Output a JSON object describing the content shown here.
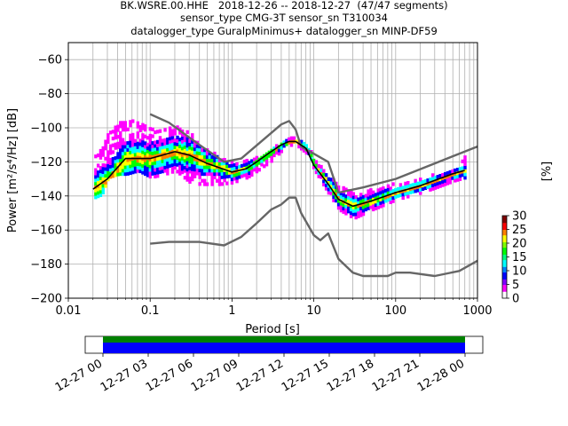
{
  "title_lines": [
    "BK.WSRE.00.HHE   2018-12-26 -- 2018-12-27  (47/47 segments)",
    "sensor_type CMG-3T sensor_sn T310034",
    "datalogger_type GuralpMinimus+ datalogger_sn MINP-DF59"
  ],
  "chart_data": {
    "type": "heatmap",
    "xlabel": "Period [s]",
    "ylabel": "Power [m²/s⁴/Hz] [dB]",
    "x_scale": "log",
    "xlim": [
      0.01,
      1000
    ],
    "ylim": [
      -200,
      -50
    ],
    "x_ticks": [
      0.01,
      0.1,
      1,
      10,
      100,
      1000
    ],
    "x_tick_labels": [
      "0.01",
      "0.1",
      "1",
      "10",
      "100",
      "1000"
    ],
    "y_ticks": [
      -200,
      -180,
      -160,
      -140,
      -120,
      -100,
      -80,
      -60
    ],
    "y_tick_labels": [
      "−200",
      "−180",
      "−160",
      "−140",
      "−120",
      "−100",
      "−80",
      "−60"
    ],
    "grid": true,
    "colorbar": {
      "label": "[%]",
      "range": [
        0,
        30
      ],
      "ticks": [
        0,
        5,
        10,
        15,
        20,
        25,
        30
      ],
      "colors": [
        "#ffffff",
        "#ff00ff",
        "#0000ff",
        "#00ffff",
        "#00ff00",
        "#ffff00",
        "#ff8000",
        "#ff0000",
        "#800000"
      ]
    },
    "mean_curve": {
      "x": [
        0.02,
        0.03,
        0.05,
        0.1,
        0.2,
        0.3,
        0.5,
        1,
        1.5,
        2,
        3,
        4,
        5,
        6,
        8,
        10,
        15,
        20,
        30,
        50,
        100,
        200,
        500,
        700
      ],
      "y": [
        -136,
        -130,
        -118,
        -118,
        -114,
        -116,
        -121,
        -126,
        -124,
        -120,
        -114,
        -110,
        -108,
        -108,
        -112,
        -122,
        -133,
        -142,
        -146,
        -143,
        -138,
        -134,
        -127,
        -125
      ]
    },
    "nhnm": {
      "x": [
        0.1,
        0.17,
        0.4,
        0.8,
        1.3,
        4,
        5,
        6,
        7,
        15,
        20,
        40,
        100,
        1000
      ],
      "y": [
        -92,
        -97,
        -110,
        -120,
        -118,
        -98,
        -96,
        -101,
        -111,
        -120,
        -138,
        -135,
        -130,
        -111
      ]
    },
    "nlnm": {
      "x": [
        0.1,
        0.17,
        0.4,
        0.8,
        1.3,
        2,
        3,
        4,
        5,
        6,
        7,
        10,
        12,
        15,
        20,
        30,
        40,
        80,
        100,
        150,
        300,
        600,
        1000
      ],
      "y": [
        -168,
        -167,
        -167,
        -169,
        -164,
        -156,
        -148,
        -145,
        -141,
        -141,
        -150,
        -163,
        -166,
        -162,
        -177,
        -185,
        -187,
        -187,
        -185,
        -185,
        -187,
        -184,
        -178
      ]
    },
    "psd_band": {
      "x": [
        0.02,
        0.025,
        0.03,
        0.04,
        0.05,
        0.07,
        0.1,
        0.15,
        0.2,
        0.3,
        0.4,
        0.5,
        0.7,
        1,
        1.5,
        2,
        3,
        4,
        5,
        6,
        8,
        10,
        15,
        20,
        30,
        50,
        100,
        200,
        300,
        500,
        700
      ],
      "upper": [
        -118,
        -112,
        -104,
        -98,
        -96,
        -97,
        -101,
        -101,
        -100,
        -104,
        -110,
        -114,
        -118,
        -120,
        -120,
        -118,
        -113,
        -109,
        -106,
        -106,
        -110,
        -119,
        -128,
        -135,
        -139,
        -137,
        -133,
        -129,
        -128,
        -124,
        -117
      ],
      "lower": [
        -142,
        -140,
        -130,
        -128,
        -128,
        -126,
        -130,
        -128,
        -126,
        -133,
        -134,
        -134,
        -134,
        -133,
        -130,
        -126,
        -120,
        -114,
        -111,
        -111,
        -116,
        -126,
        -140,
        -149,
        -154,
        -149,
        -143,
        -139,
        -136,
        -132,
        -130
      ]
    },
    "timeline": {
      "tick_labels": [
        "12-27 00",
        "12-27 03",
        "12-27 06",
        "12-27 09",
        "12-27 12",
        "12-27 15",
        "12-27 18",
        "12-27 21",
        "12-28 00"
      ],
      "coverage_colors": [
        "#008000",
        "#0000ff"
      ]
    }
  }
}
